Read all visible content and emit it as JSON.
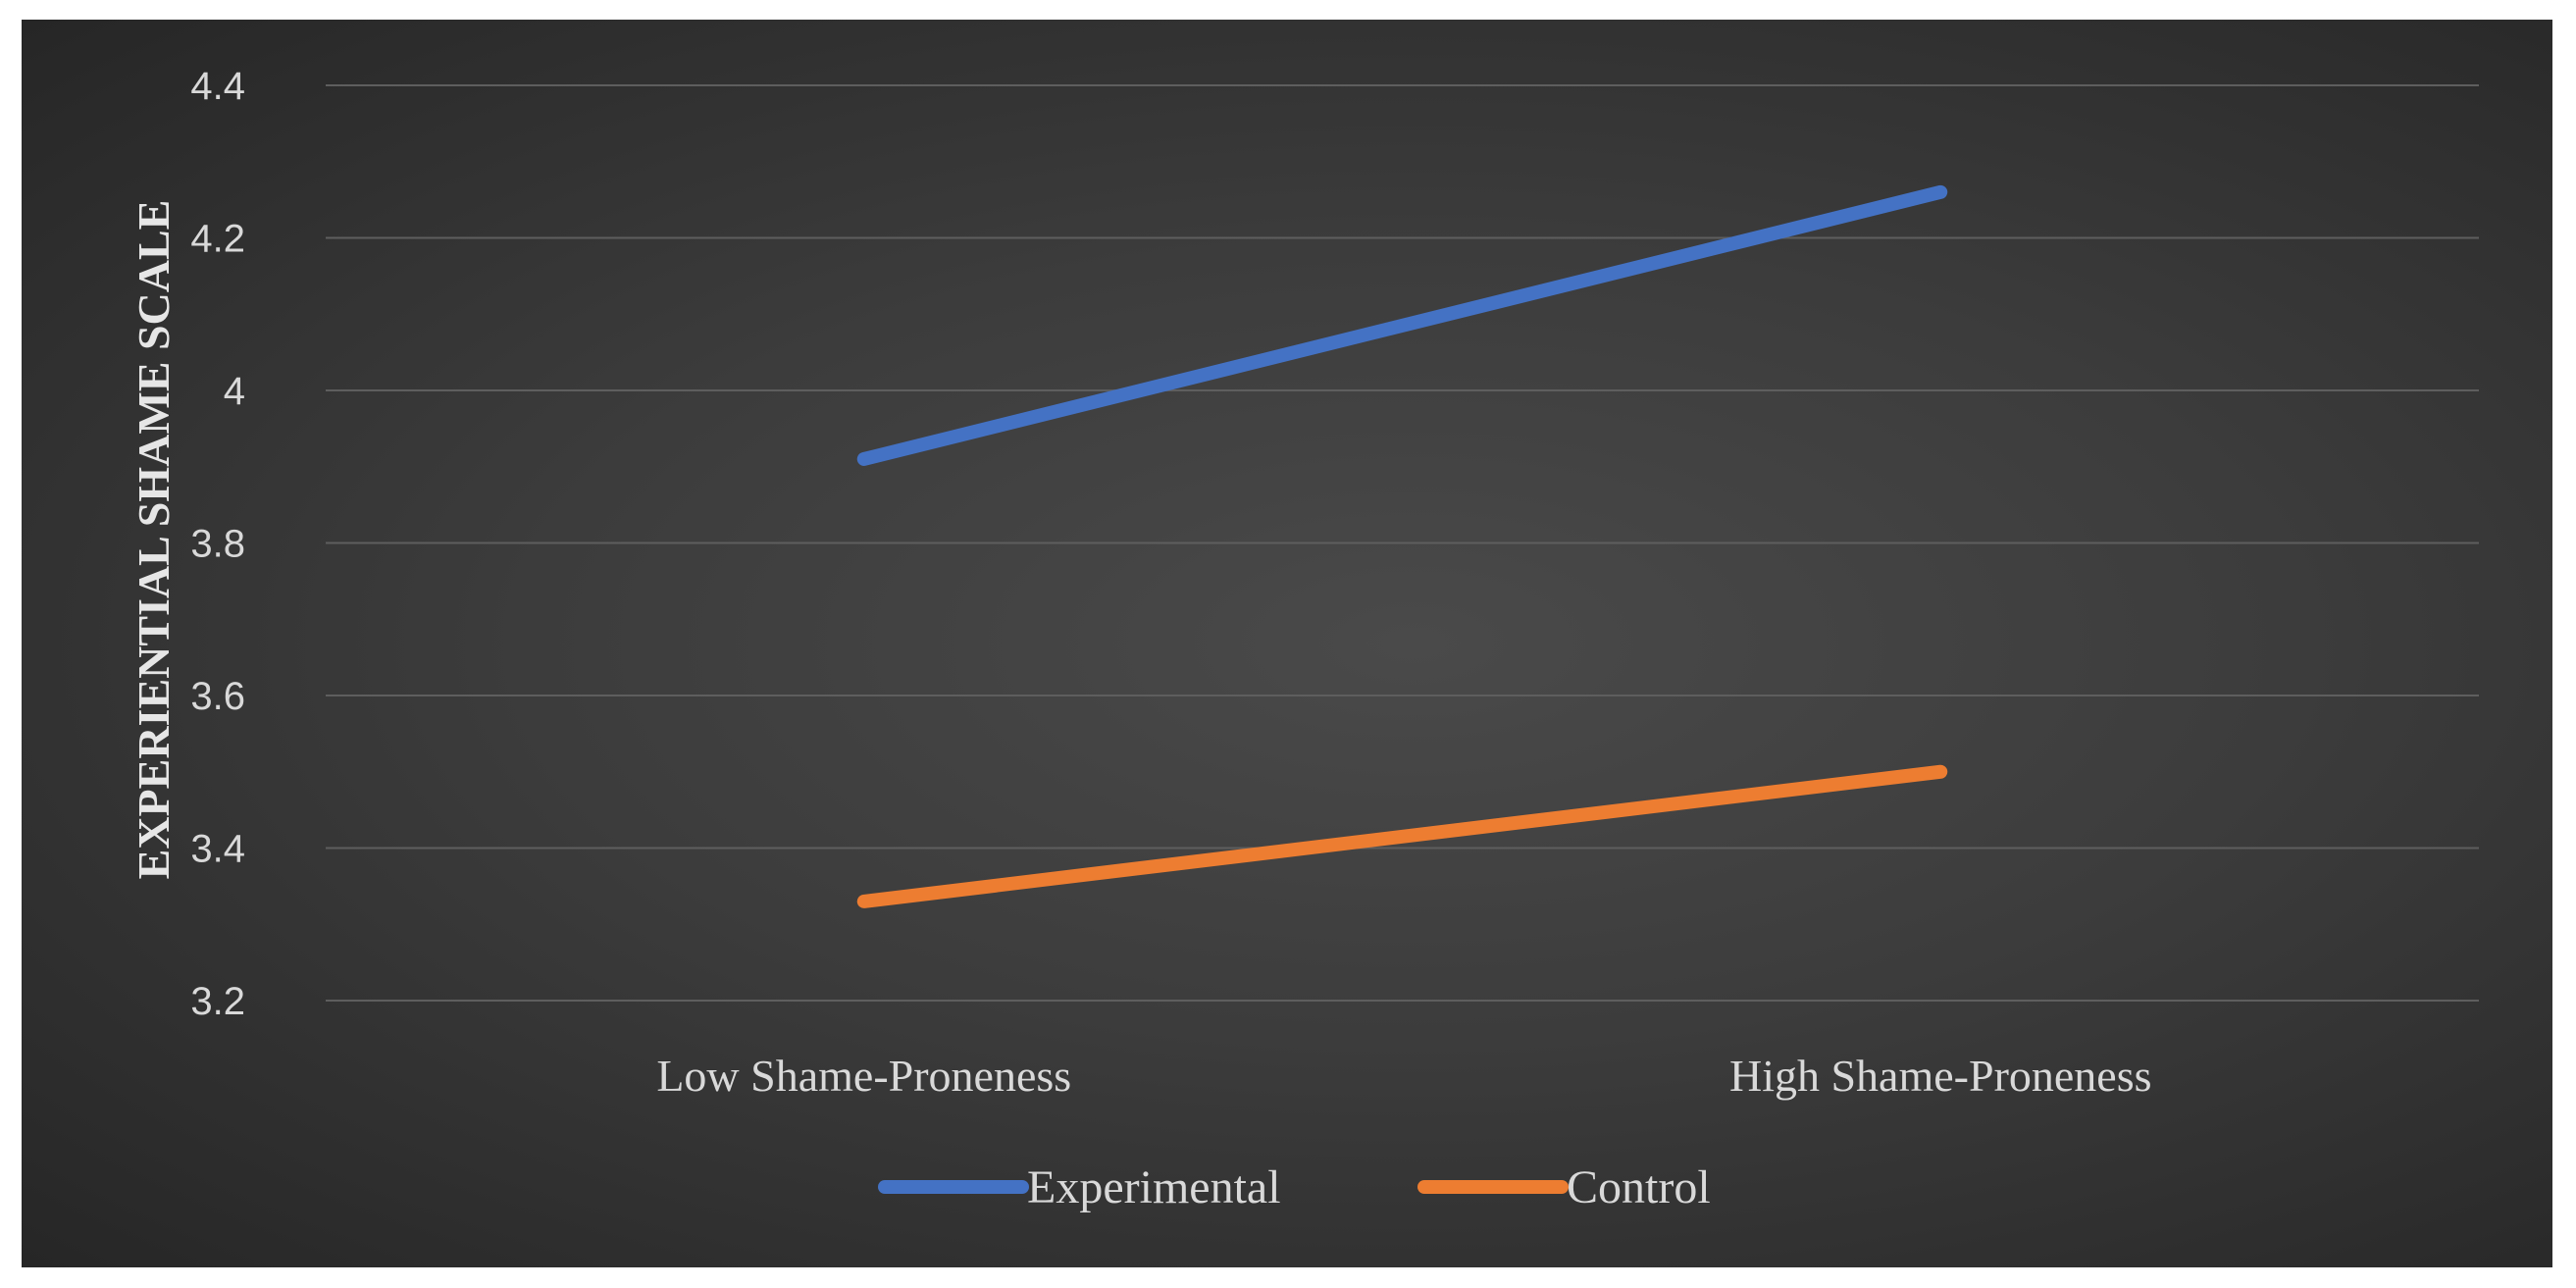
{
  "chart_data": {
    "type": "line",
    "title": "",
    "xlabel": "",
    "ylabel": "EXPERIENTIAL  SHAME SCALE",
    "categories": [
      "Low Shame-Proneness",
      "High Shame-Proneness"
    ],
    "series": [
      {
        "name": "Experimental",
        "values": [
          3.91,
          4.26
        ],
        "color": "#4472c4"
      },
      {
        "name": "Control",
        "values": [
          3.33,
          3.5
        ],
        "color": "#ed7d31"
      }
    ],
    "ylim": [
      3.2,
      4.4
    ],
    "yticks": [
      "3.2",
      "3.4",
      "3.6",
      "3.8",
      "4",
      "4.2",
      "4.4"
    ],
    "grid": true,
    "legend_position": "bottom",
    "background": "#3a3a3a"
  }
}
